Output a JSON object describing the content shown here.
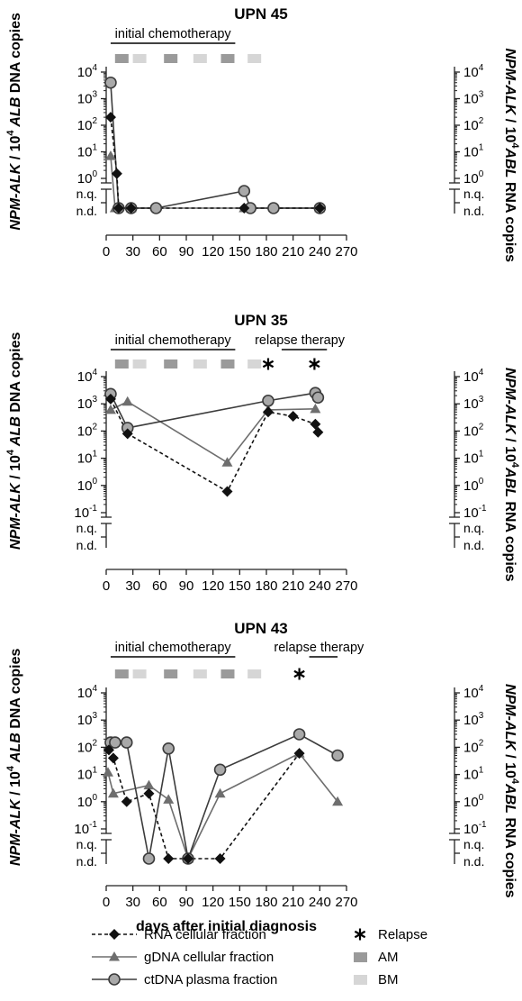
{
  "colors": {
    "rna": "#111111",
    "gdna": "#6e6e6e",
    "ctdna": "#3c3c3c",
    "ctdna_fill": "#a9a9a9",
    "am": "#9a9a9a",
    "bm": "#d6d6d6",
    "axis": "#222222"
  },
  "icons": {
    "relapse": "asterisk-icon",
    "rna": "diamond-marker",
    "gdna": "triangle-marker",
    "ctdna": "circle-marker"
  },
  "shared": {
    "y_left_prefix": "NPM-ALK",
    "y_left_mid": " / 10",
    "y_left_sup": "4",
    "y_left_gene": " ALB",
    "y_left_suffix": " DNA copies",
    "y_right_prefix": "NPM-ALK",
    "y_right_mid": " / 10",
    "y_right_sup": "4",
    "y_right_gene": "ABL",
    "y_right_suffix": " RNA copies",
    "nq": "n.q.",
    "nd": "n.d.",
    "x_label": "days after initial diagnosis",
    "x_ticks": [
      "0",
      "30",
      "60",
      "90",
      "120",
      "150",
      "180",
      "210",
      "240",
      "270"
    ]
  },
  "legend": {
    "rna": "RNA cellular fraction",
    "gdna": "gDNA cellular fraction",
    "ctdna": "ctDNA plasma fraction",
    "relapse": "Relapse",
    "am": "AM",
    "bm": "BM"
  },
  "chart_data": [
    {
      "type": "line",
      "title": "UPN 45",
      "xlim": [
        0,
        270
      ],
      "ylim_log10": [
        0,
        4
      ],
      "y_ticks": [
        {
          "base": "10",
          "exp": "4"
        },
        {
          "base": "10",
          "exp": "3"
        },
        {
          "base": "10",
          "exp": "2"
        },
        {
          "base": "10",
          "exp": "1"
        },
        {
          "base": "10",
          "exp": "0"
        }
      ],
      "therapy": [
        {
          "label": "initial chemotherapy",
          "x0": 5,
          "x1": 145
        }
      ],
      "blocks": [
        {
          "kind": "am",
          "x": 17
        },
        {
          "kind": "bm",
          "x": 37
        },
        {
          "kind": "am",
          "x": 72
        },
        {
          "kind": "bm",
          "x": 105
        },
        {
          "kind": "am",
          "x": 136
        },
        {
          "kind": "bm",
          "x": 166
        }
      ],
      "relapse": [],
      "series": [
        {
          "key": "rna",
          "points": [
            {
              "x": 5,
              "y": 200
            },
            {
              "x": 12,
              "y": 1.5
            },
            {
              "x": 14,
              "y": "nd"
            },
            {
              "x": 28,
              "y": "nd"
            },
            {
              "x": 155,
              "y": "nd"
            },
            {
              "x": 240,
              "y": "nd"
            }
          ]
        },
        {
          "key": "gdna",
          "points": [
            {
              "x": 5,
              "y": 7
            },
            {
              "x": 10,
              "y": "nd"
            },
            {
              "x": 28,
              "y": "nd"
            },
            {
              "x": 155,
              "y": "nd"
            },
            {
              "x": 240,
              "y": "nd"
            }
          ]
        },
        {
          "key": "ctdna",
          "points": [
            {
              "x": 5,
              "y": 4000
            },
            {
              "x": 14,
              "y": "nd"
            },
            {
              "x": 28,
              "y": "nd"
            },
            {
              "x": 56,
              "y": "nd"
            },
            {
              "x": 155,
              "y": "nq"
            },
            {
              "x": 162,
              "y": "nd"
            },
            {
              "x": 188,
              "y": "nd"
            },
            {
              "x": 240,
              "y": "nd"
            }
          ]
        }
      ]
    },
    {
      "type": "line",
      "title": "UPN 35",
      "xlim": [
        0,
        270
      ],
      "ylim_log10": [
        -1,
        4
      ],
      "y_ticks": [
        {
          "base": "10",
          "exp": "4"
        },
        {
          "base": "10",
          "exp": "3"
        },
        {
          "base": "10",
          "exp": "2"
        },
        {
          "base": "10",
          "exp": "1"
        },
        {
          "base": "10",
          "exp": "0"
        },
        {
          "base": "10",
          "exp": "-1"
        }
      ],
      "therapy": [
        {
          "label": "initial chemotherapy",
          "x0": 5,
          "x1": 145
        },
        {
          "label": "relapse therapy",
          "x0": 187,
          "x1": 248
        }
      ],
      "blocks": [
        {
          "kind": "am",
          "x": 17
        },
        {
          "kind": "bm",
          "x": 37
        },
        {
          "kind": "am",
          "x": 72
        },
        {
          "kind": "bm",
          "x": 105
        },
        {
          "kind": "am",
          "x": 136
        },
        {
          "kind": "bm",
          "x": 166
        }
      ],
      "relapse": [
        {
          "x": 182
        },
        {
          "x": 234
        }
      ],
      "series": [
        {
          "key": "rna",
          "points": [
            {
              "x": 5,
              "y": 1500
            },
            {
              "x": 24,
              "y": 80
            },
            {
              "x": 136,
              "y": 0.6
            },
            {
              "x": 182,
              "y": 500
            },
            {
              "x": 210,
              "y": 350
            },
            {
              "x": 235,
              "y": 180
            },
            {
              "x": 238,
              "y": 90
            }
          ]
        },
        {
          "key": "gdna",
          "points": [
            {
              "x": 5,
              "y": 600
            },
            {
              "x": 24,
              "y": 1200
            },
            {
              "x": 136,
              "y": 7
            },
            {
              "x": 182,
              "y": 600
            },
            {
              "x": 235,
              "y": 650
            }
          ]
        },
        {
          "key": "ctdna",
          "points": [
            {
              "x": 5,
              "y": 2300
            },
            {
              "x": 24,
              "y": 130
            },
            {
              "x": 182,
              "y": 1300
            },
            {
              "x": 235,
              "y": 2500
            },
            {
              "x": 238,
              "y": 1700
            }
          ]
        }
      ]
    },
    {
      "type": "line",
      "title": "UPN 43",
      "xlim": [
        0,
        270
      ],
      "ylim_log10": [
        -1,
        4
      ],
      "y_ticks": [
        {
          "base": "10",
          "exp": "4"
        },
        {
          "base": "10",
          "exp": "3"
        },
        {
          "base": "10",
          "exp": "2"
        },
        {
          "base": "10",
          "exp": "1"
        },
        {
          "base": "10",
          "exp": "0"
        },
        {
          "base": "10",
          "exp": "-1"
        }
      ],
      "therapy": [
        {
          "label": "initial chemotherapy",
          "x0": 5,
          "x1": 145
        },
        {
          "label": "relapse therapy",
          "x0": 218,
          "x1": 260
        }
      ],
      "blocks": [
        {
          "kind": "am",
          "x": 17
        },
        {
          "kind": "bm",
          "x": 37
        },
        {
          "kind": "am",
          "x": 72
        },
        {
          "kind": "bm",
          "x": 105
        },
        {
          "kind": "am",
          "x": 136
        },
        {
          "kind": "bm",
          "x": 166
        }
      ],
      "relapse": [
        {
          "x": 217
        }
      ],
      "series": [
        {
          "key": "rna",
          "points": [
            {
              "x": 3,
              "y": 80
            },
            {
              "x": 8,
              "y": 40
            },
            {
              "x": 23,
              "y": 1
            },
            {
              "x": 48,
              "y": 2
            },
            {
              "x": 70,
              "y": "nd"
            },
            {
              "x": 92,
              "y": "nd"
            },
            {
              "x": 128,
              "y": "nd"
            },
            {
              "x": 217,
              "y": 60
            }
          ]
        },
        {
          "key": "gdna",
          "points": [
            {
              "x": 2,
              "y": 12
            },
            {
              "x": 8,
              "y": 2
            },
            {
              "x": 48,
              "y": 4
            },
            {
              "x": 70,
              "y": 1.2
            },
            {
              "x": 92,
              "y": "nd"
            },
            {
              "x": 128,
              "y": 2
            },
            {
              "x": 217,
              "y": 60
            },
            {
              "x": 260,
              "y": 1
            }
          ]
        },
        {
          "key": "ctdna",
          "points": [
            {
              "x": 5,
              "y": 150
            },
            {
              "x": 10,
              "y": 150
            },
            {
              "x": 23,
              "y": 150
            },
            {
              "x": 48,
              "y": "nd"
            },
            {
              "x": 70,
              "y": 90
            },
            {
              "x": 92,
              "y": "nd"
            },
            {
              "x": 128,
              "y": 15
            },
            {
              "x": 217,
              "y": 300
            },
            {
              "x": 260,
              "y": 50
            }
          ]
        }
      ]
    }
  ]
}
